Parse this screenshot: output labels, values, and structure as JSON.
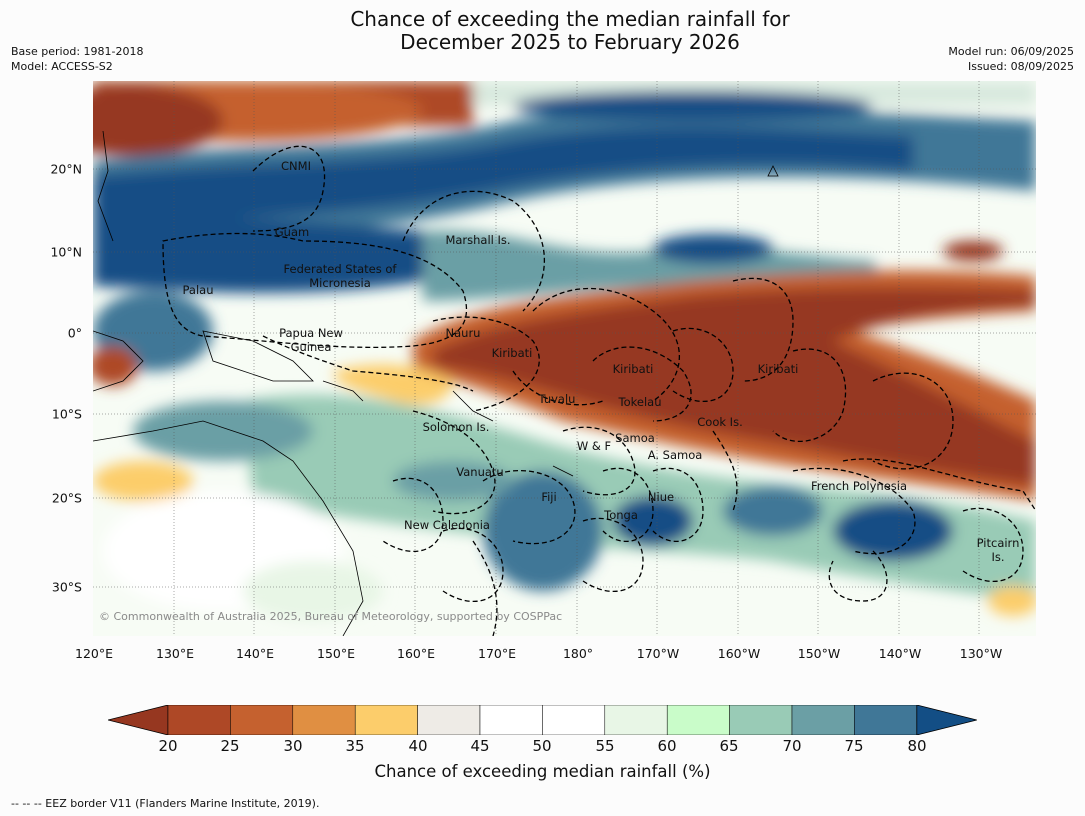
{
  "title": {
    "line1": "Chance of exceeding the median rainfall for",
    "line2": "December 2025 to February 2026"
  },
  "meta": {
    "base_period": "Base period: 1981-2018",
    "model": "Model: ACCESS-S2",
    "model_run": "Model run: 06/09/2025",
    "issued": "Issued: 08/09/2025"
  },
  "map": {
    "longitude_labels": [
      "120°E",
      "130°E",
      "140°E",
      "150°E",
      "160°E",
      "170°E",
      "180°",
      "170°W",
      "160°W",
      "150°W",
      "140°W",
      "130°W"
    ],
    "latitude_labels": [
      "20°N",
      "10°N",
      "0°",
      "10°S",
      "20°S",
      "30°S"
    ],
    "regions": [
      {
        "name": "CNMI"
      },
      {
        "name": "Guam"
      },
      {
        "name": "Marshall Is."
      },
      {
        "name": "Federated States of Micronesia"
      },
      {
        "name": "Palau"
      },
      {
        "name": "Papua New Guinea"
      },
      {
        "name": "Nauru"
      },
      {
        "name": "Kiribati"
      },
      {
        "name": "Kiribati"
      },
      {
        "name": "Kiribati"
      },
      {
        "name": "Tuvalu"
      },
      {
        "name": "Tokelau"
      },
      {
        "name": "Cook Is."
      },
      {
        "name": "Solomon Is."
      },
      {
        "name": "Samoa"
      },
      {
        "name": "W & F"
      },
      {
        "name": "A. Samoa"
      },
      {
        "name": "Vanuatu"
      },
      {
        "name": "Fiji"
      },
      {
        "name": "Niue"
      },
      {
        "name": "French Polynesia"
      },
      {
        "name": "Tonga"
      },
      {
        "name": "New Caledonia"
      },
      {
        "name": "Pitcairn Is."
      }
    ],
    "copyright": "© Commonwealth of Australia 2025, Bureau of Meteorology, supported by COSPPac"
  },
  "colorbar": {
    "ticks": [
      "20",
      "25",
      "30",
      "35",
      "40",
      "45",
      "50",
      "55",
      "60",
      "65",
      "70",
      "75",
      "80"
    ],
    "colors": [
      "#ae4826",
      "#c5612f",
      "#e08f42",
      "#fccd6b",
      "#eeebe6",
      "#ffffff",
      "#ffffff",
      "#e8f6e6",
      "#c9fcc9",
      "#99cbb6",
      "#6b9fa5",
      "#407797"
    ],
    "under_color": "#963720",
    "over_color": "#134e85",
    "label": "Chance of exceeding median rainfall (%)"
  },
  "footer": "--  --  -- EEZ border V11 (Flanders Marine Institute, 2019)."
}
